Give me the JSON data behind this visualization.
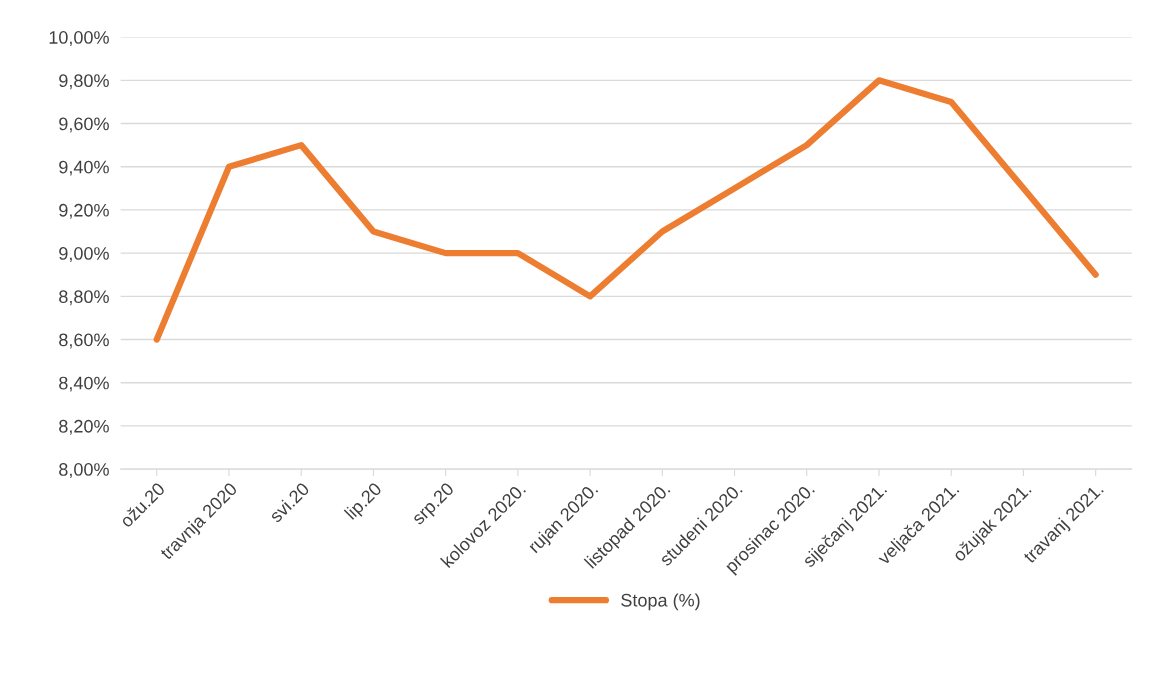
{
  "chart_data": {
    "type": "line",
    "categories": [
      "ožu.20",
      "travnja 2020",
      "svi.20",
      "lip.20",
      "srp.20",
      "kolovoz 2020.",
      "rujan 2020.",
      "listopad 2020.",
      "studeni 2020.",
      "prosinac 2020.",
      "siječanj 2021.",
      "veljača 2021.",
      "ožujak 2021.",
      "travanj 2021."
    ],
    "series": [
      {
        "name": "Stopa (%)",
        "color": "#ed7d31",
        "values": [
          8.6,
          9.4,
          9.5,
          9.1,
          9.0,
          9.0,
          8.8,
          9.1,
          9.3,
          9.5,
          9.8,
          9.7,
          9.3,
          8.9
        ]
      }
    ],
    "ylim": [
      8.0,
      10.0
    ],
    "yticks": [
      {
        "value": 8.0,
        "label": "8,00%"
      },
      {
        "value": 8.2,
        "label": "8,20%"
      },
      {
        "value": 8.4,
        "label": "8,40%"
      },
      {
        "value": 8.6,
        "label": "8,60%"
      },
      {
        "value": 8.8,
        "label": "8,80%"
      },
      {
        "value": 9.0,
        "label": "9,00%"
      },
      {
        "value": 9.2,
        "label": "9,20%"
      },
      {
        "value": 9.4,
        "label": "9,40%"
      },
      {
        "value": 9.6,
        "label": "9,60%"
      },
      {
        "value": 9.8,
        "label": "9,80%"
      },
      {
        "value": 10.0,
        "label": "10,00%"
      }
    ],
    "grid": "y",
    "legend": "bottom",
    "marker": "none",
    "line_style": "solid"
  }
}
